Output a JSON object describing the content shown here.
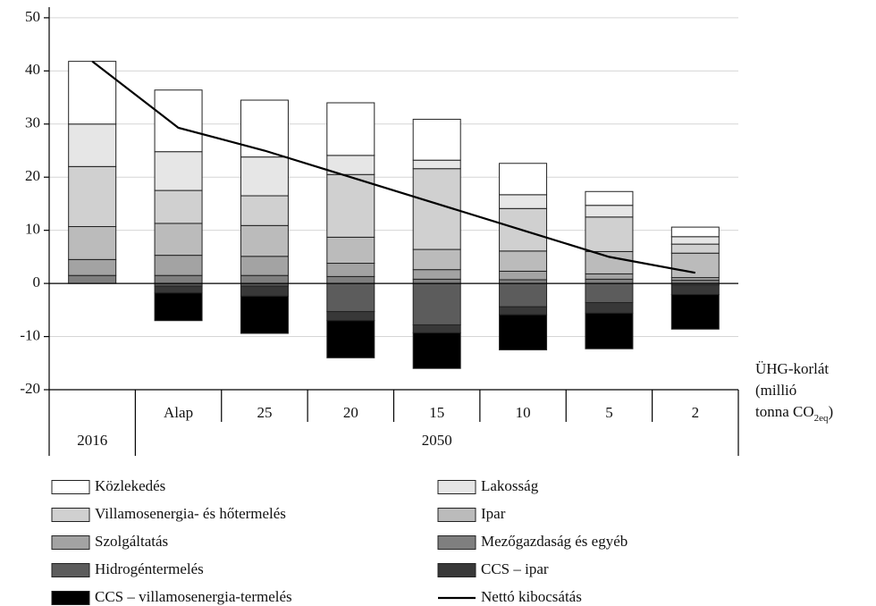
{
  "chart_data": {
    "type": "bar",
    "stacked": true,
    "categories": [
      null,
      "Alap",
      "25",
      "20",
      "15",
      "10",
      "5",
      "2"
    ],
    "category_groups": [
      {
        "name": "2016",
        "count": 1
      },
      {
        "name": "2050",
        "count": 7
      }
    ],
    "x_label": {
      "lines": [
        "ÜHG-korlát",
        "(millió",
        "tonna CO"
      ],
      "subscript": "2eq",
      "suffix": ")"
    },
    "ylim": [
      -20,
      52
    ],
    "yticks": [
      -20,
      -10,
      0,
      10,
      20,
      30,
      40,
      50
    ],
    "grid": true,
    "series": [
      {
        "name": "Közlekedés",
        "color": "#ffffff",
        "values": [
          11.8,
          11.6,
          10.7,
          9.9,
          7.7,
          5.9,
          2.6,
          1.8
        ]
      },
      {
        "name": "Lakosság",
        "color": "#e6e6e6",
        "values": [
          8,
          7.3,
          7.3,
          3.6,
          1.6,
          2.6,
          2.2,
          1.4
        ]
      },
      {
        "name": "Villamosenergia- és hőtermelés",
        "color": "#d0d0d0",
        "values": [
          11.3,
          6.2,
          5.6,
          11.8,
          15.2,
          8,
          6.5,
          1.7
        ]
      },
      {
        "name": "Ipar",
        "color": "#bbbbbb",
        "values": [
          6.2,
          6,
          5.8,
          4.9,
          3.8,
          3.8,
          4.2,
          4.6
        ]
      },
      {
        "name": "Szolgáltatás",
        "color": "#a3a3a3",
        "values": [
          3,
          3.8,
          3.6,
          2.5,
          1.8,
          1.6,
          1,
          0.5
        ]
      },
      {
        "name": "Mezőgazdaság és egyéb",
        "color": "#7f7f7f",
        "values": [
          1.5,
          1.5,
          1.5,
          1.3,
          0.8,
          0.7,
          0.8,
          0.6
        ]
      },
      {
        "name": "Hidrogéntermelés",
        "color": "#5c5c5c",
        "values": [
          0,
          -0.5,
          -0.5,
          -5.3,
          -7.8,
          -4.4,
          -3.6,
          -0.3
        ]
      },
      {
        "name": "CCS – ipar",
        "color": "#383838",
        "values": [
          0,
          -1.3,
          -1.9,
          -1.7,
          -1.5,
          -1.5,
          -2,
          -1.8
        ]
      },
      {
        "name": "CCS – villamosenergia-termelés",
        "color": "#000000",
        "values": [
          0,
          -5.2,
          -7,
          -7,
          -6.7,
          -6.6,
          -6.7,
          -6.5
        ]
      },
      {
        "name": "Nettó kibocsátás",
        "type": "line",
        "color": "#000000",
        "values": [
          41.8,
          29.3,
          25,
          20,
          15,
          10,
          5,
          2
        ]
      }
    ]
  }
}
